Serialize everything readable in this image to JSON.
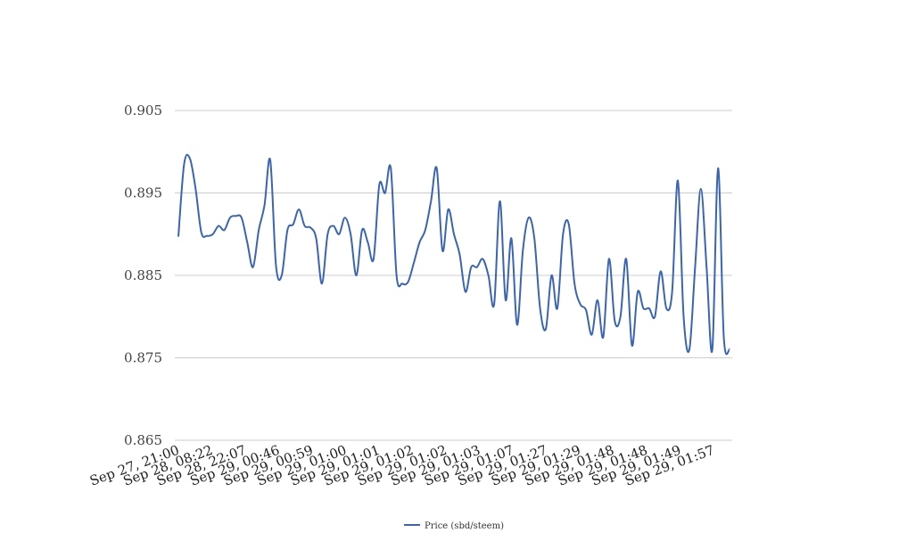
{
  "chart_data": {
    "type": "line",
    "title": "",
    "xlabel": "",
    "ylabel": "",
    "ylim": [
      0.865,
      0.905
    ],
    "yticks": [
      "0.905",
      "0.895",
      "0.885",
      "0.875",
      "0.865"
    ],
    "ytick_values": [
      0.905,
      0.895,
      0.885,
      0.875,
      0.865
    ],
    "xtick_labels": [
      "Sep 27, 21:00",
      "Sep 28, 08:22",
      "Sep 28, 22:07",
      "Sep 29, 00:46",
      "Sep 29, 00:59",
      "Sep 29, 01:00",
      "Sep 29, 01:01",
      "Sep 29, 01:02",
      "Sep 29, 01:02",
      "Sep 29, 01:03",
      "Sep 29, 01:07",
      "Sep 29, 01:27",
      "Sep 29, 01:29",
      "Sep 29, 01:48",
      "Sep 29, 01:48",
      "Sep 29, 01:49",
      "Sep 29, 01:57"
    ],
    "grid": true,
    "legend_position": "bottom",
    "series": [
      {
        "name": "Price (sbd/steem)",
        "color": "#3a64b4",
        "values": [
          0.8897,
          0.8985,
          0.8992,
          0.8955,
          0.8902,
          0.8898,
          0.89,
          0.891,
          0.8905,
          0.892,
          0.8922,
          0.892,
          0.889,
          0.886,
          0.8905,
          0.8935,
          0.899,
          0.8862,
          0.885,
          0.8905,
          0.8912,
          0.893,
          0.891,
          0.8908,
          0.8895,
          0.884,
          0.89,
          0.891,
          0.89,
          0.892,
          0.89,
          0.885,
          0.8905,
          0.889,
          0.887,
          0.896,
          0.895,
          0.898,
          0.885,
          0.884,
          0.8842,
          0.8865,
          0.889,
          0.8905,
          0.894,
          0.898,
          0.888,
          0.893,
          0.89,
          0.8875,
          0.883,
          0.886,
          0.886,
          0.887,
          0.885,
          0.8815,
          0.894,
          0.882,
          0.8895,
          0.879,
          0.888,
          0.892,
          0.8895,
          0.881,
          0.8785,
          0.885,
          0.881,
          0.89,
          0.8912,
          0.884,
          0.8815,
          0.8808,
          0.8778,
          0.882,
          0.8775,
          0.887,
          0.8795,
          0.88,
          0.887,
          0.8765,
          0.883,
          0.881,
          0.881,
          0.88,
          0.8855,
          0.881,
          0.883,
          0.8965,
          0.88,
          0.876,
          0.886,
          0.8955,
          0.886,
          0.876,
          0.898,
          0.8775,
          0.876
        ]
      }
    ]
  }
}
